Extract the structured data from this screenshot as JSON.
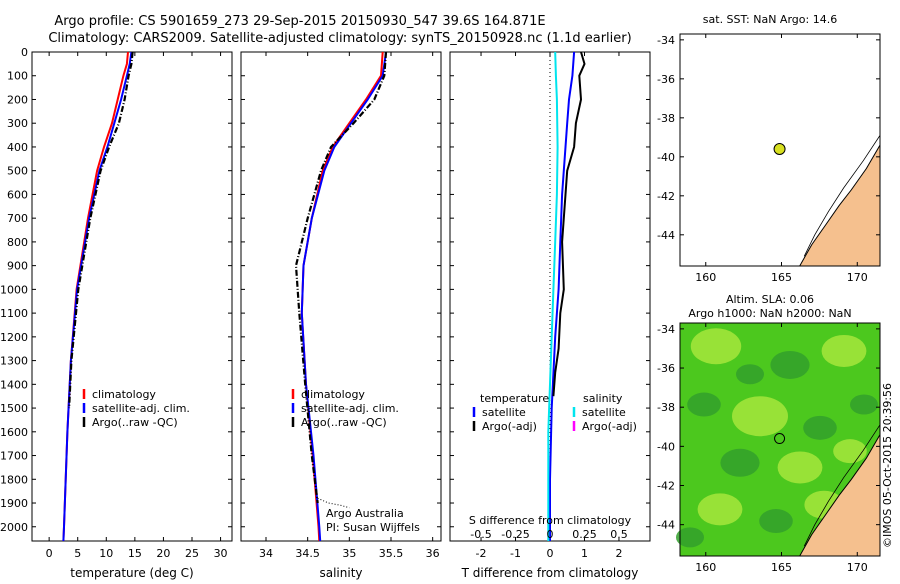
{
  "header": {
    "title_line1": "Argo profile: CS 5901659_273 29-Sep-2015 20150930_547 39.6S 164.871E",
    "title_line2": "Climatology: CARS2009. Satellite-adjusted climatology: synTS_20150928.nc (1.1d earlier)"
  },
  "footer": {
    "stamp": "©IMOS 05-Oct-2015 20:39:56"
  },
  "colors": {
    "climatology": "#ff0000",
    "satellite": "#0000ff",
    "argo": "#000000",
    "salinity_satellite": "#00e5ee",
    "salinity_argo": "#ff00ff",
    "land": "#f5c08e",
    "sla_dark": "#33a02c",
    "sla_mid": "#4cc81e",
    "sla_light": "#a6e63c"
  },
  "chart_data": [
    {
      "type": "line",
      "id": "temperature",
      "xlabel": "temperature (deg C)",
      "ylabel": "",
      "xlim": [
        -3,
        32
      ],
      "ylim": [
        2060,
        0
      ],
      "y_reversed": true,
      "xticks": [
        "0",
        "5",
        "10",
        "15",
        "20",
        "25",
        "30"
      ],
      "yticks": [
        "0",
        "100",
        "200",
        "300",
        "400",
        "500",
        "600",
        "700",
        "800",
        "900",
        "1000",
        "1100",
        "1200",
        "1300",
        "1400",
        "1500",
        "1600",
        "1700",
        "1800",
        "1900",
        "2000"
      ],
      "legend": {
        "placement": "center-right",
        "entries": [
          "climatology",
          "satellite-adj. clim.",
          "Argo(..raw -QC)"
        ]
      },
      "series": [
        {
          "name": "climatology",
          "color": "#ff0000",
          "depth": [
            0,
            50,
            100,
            200,
            300,
            400,
            500,
            700,
            1000,
            1300,
            1600,
            2000,
            2060
          ],
          "values": [
            13.8,
            13.6,
            13.0,
            12.0,
            11.0,
            9.6,
            8.4,
            6.8,
            4.8,
            3.8,
            3.2,
            2.6,
            2.5
          ]
        },
        {
          "name": "satellite-adj. clim.",
          "color": "#0000ff",
          "depth": [
            0,
            50,
            100,
            200,
            300,
            400,
            500,
            700,
            1000,
            1300,
            1600,
            2000,
            2060
          ],
          "values": [
            14.4,
            14.1,
            13.6,
            12.6,
            11.4,
            10.2,
            8.8,
            7.0,
            4.9,
            3.8,
            3.2,
            2.6,
            2.5
          ]
        },
        {
          "name": "Argo(..raw -QC)",
          "color": "#000000",
          "depth": [
            0,
            50,
            100,
            200,
            300,
            400,
            500,
            700,
            1000,
            1300,
            1500
          ],
          "values": [
            14.6,
            14.4,
            13.9,
            13.2,
            12.2,
            10.5,
            9.0,
            7.2,
            5.1,
            3.9,
            3.5
          ]
        }
      ]
    },
    {
      "type": "line",
      "id": "salinity",
      "xlabel": "salinity",
      "ylabel": "",
      "xlim": [
        33.7,
        36.1
      ],
      "ylim": [
        2060,
        0
      ],
      "y_reversed": true,
      "xticks": [
        "34",
        "34.5",
        "35",
        "35.5",
        "36"
      ],
      "legend": {
        "placement": "center-right",
        "entries": [
          "climatology",
          "satellite-adj. clim.",
          "Argo(..raw -QC)"
        ]
      },
      "annotations": [
        "Argo Australia",
        "PI: Susan Wijffels"
      ],
      "series": [
        {
          "name": "climatology",
          "color": "#ff0000",
          "depth": [
            0,
            100,
            200,
            300,
            400,
            500,
            700,
            900,
            1100,
            1400,
            1700,
            2000,
            2060
          ],
          "values": [
            35.4,
            35.38,
            35.2,
            35.0,
            34.8,
            34.68,
            34.55,
            34.45,
            34.43,
            34.48,
            34.56,
            34.63,
            34.64
          ]
        },
        {
          "name": "satellite-adj. clim.",
          "color": "#0000ff",
          "depth": [
            0,
            100,
            200,
            300,
            400,
            500,
            700,
            900,
            1100,
            1400,
            1700,
            2000,
            2060
          ],
          "values": [
            35.44,
            35.4,
            35.22,
            35.02,
            34.82,
            34.7,
            34.55,
            34.45,
            34.43,
            34.48,
            34.57,
            34.64,
            34.65
          ]
        },
        {
          "name": "Argo(..raw -QC)",
          "color": "#000000",
          "depth": [
            0,
            100,
            200,
            300,
            400,
            500,
            700,
            900,
            1100,
            1400,
            1700,
            1900
          ],
          "values": [
            35.44,
            35.42,
            35.3,
            35.05,
            34.78,
            34.66,
            34.5,
            34.36,
            34.4,
            34.47,
            34.55,
            34.62
          ]
        }
      ]
    },
    {
      "type": "line",
      "id": "difference",
      "xlabel": "T difference from climatology",
      "ylabel": "",
      "xlabel_top": "S difference from climatology",
      "xlim": [
        -2.9,
        2.9
      ],
      "ylim": [
        2060,
        0
      ],
      "y_reversed": true,
      "xticks": [
        "-2",
        "-1",
        "0",
        "1",
        "2"
      ],
      "xticks_s": [
        "-0.5",
        "-0.25",
        "0",
        "0.25",
        "0.5"
      ],
      "legend": {
        "placement": "center",
        "temperature_heading": "temperature",
        "salinity_heading": "salinity",
        "entries": [
          "satellite",
          "Argo(-adj)",
          "satellite",
          "Argo(-adj)"
        ]
      },
      "series": [
        {
          "name": "temperature satellite",
          "color": "#0000ff",
          "depth": [
            0,
            100,
            200,
            300,
            400,
            600,
            800,
            1000,
            1200,
            1500,
            1800,
            2060
          ],
          "values": [
            0.7,
            0.65,
            0.55,
            0.5,
            0.45,
            0.35,
            0.3,
            0.25,
            0.15,
            0.05,
            0.0,
            0.0
          ]
        },
        {
          "name": "temperature Argo(-adj)",
          "color": "#000000",
          "depth": [
            0,
            50,
            100,
            200,
            300,
            400,
            500,
            600,
            800,
            1000,
            1100,
            1250,
            1350,
            1450
          ],
          "values": [
            0.9,
            1.0,
            0.85,
            0.9,
            0.75,
            0.7,
            0.5,
            0.45,
            0.35,
            0.4,
            0.3,
            0.25,
            0.15,
            0.1
          ]
        },
        {
          "name": "salinity satellite",
          "color": "#00e5ee",
          "depth": [
            0,
            100,
            200,
            400,
            600,
            800,
            1000,
            1200,
            1400,
            1600,
            1800,
            2060
          ],
          "values": [
            0.15,
            0.17,
            0.2,
            0.22,
            0.2,
            0.15,
            0.1,
            0.05,
            0.0,
            -0.05,
            -0.05,
            -0.05
          ]
        }
      ]
    }
  ],
  "maps": {
    "sst": {
      "title": "sat. SST: NaN Argo: 14.6",
      "xticks": [
        "160",
        "165",
        "170"
      ],
      "yticks": [
        "-34",
        "-36",
        "-38",
        "-40",
        "-42",
        "-44"
      ],
      "xlim": [
        158.3,
        171.5
      ],
      "ylim": [
        -45.6,
        -33.7
      ],
      "marker": {
        "lon": 164.871,
        "lat": -39.6
      }
    },
    "sla": {
      "title_line1": "Altim. SLA: 0.06",
      "title_line2": "Argo h1000: NaN h2000: NaN",
      "xticks": [
        "160",
        "165",
        "170"
      ],
      "yticks": [
        "-34",
        "-36",
        "-38",
        "-40",
        "-42",
        "-44"
      ],
      "xlim": [
        158.3,
        171.5
      ],
      "ylim": [
        -45.6,
        -33.7
      ],
      "marker": {
        "lon": 164.871,
        "lat": -39.6
      }
    }
  }
}
